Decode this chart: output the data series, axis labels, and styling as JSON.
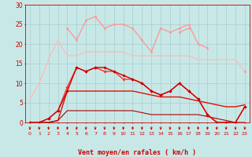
{
  "x": [
    0,
    1,
    2,
    3,
    4,
    5,
    6,
    7,
    8,
    9,
    10,
    11,
    12,
    13,
    14,
    15,
    16,
    17,
    18,
    19,
    20,
    21,
    22,
    23
  ],
  "background_color": "#c8e8e8",
  "grid_color": "#a8cccc",
  "lines": [
    {
      "y": [
        6,
        10,
        16,
        21,
        17,
        17,
        18,
        18,
        18,
        18,
        18,
        17,
        17,
        17,
        17,
        17,
        17,
        17,
        16,
        16,
        16,
        16,
        16,
        13
      ],
      "color": "#ffbbbb",
      "lw": 1.0,
      "marker": null
    },
    {
      "y": [
        null,
        null,
        null,
        null,
        24,
        21,
        26,
        27,
        24,
        25,
        25,
        24,
        21,
        18,
        24,
        23,
        24,
        25,
        20,
        19,
        null,
        null,
        null,
        null
      ],
      "color": "#ff9999",
      "lw": 1.0,
      "marker": "o"
    },
    {
      "y": [
        null,
        null,
        null,
        null,
        null,
        null,
        null,
        null,
        null,
        null,
        null,
        null,
        null,
        null,
        null,
        null,
        23,
        24,
        null,
        null,
        null,
        null,
        null,
        13
      ],
      "color": "#ff9999",
      "lw": 1.0,
      "marker": "o"
    },
    {
      "y": [
        0,
        0,
        1,
        3,
        9,
        14,
        13,
        14,
        13,
        13,
        11,
        11,
        10,
        8,
        7,
        8,
        10,
        8,
        6,
        2,
        0,
        0,
        0,
        4
      ],
      "color": "#ff3333",
      "lw": 1.0,
      "marker": "D"
    },
    {
      "y": [
        0,
        0,
        1,
        3,
        8,
        14,
        13,
        14,
        14,
        13,
        12,
        11,
        10,
        8,
        7,
        8,
        10,
        8,
        6,
        2,
        0,
        0,
        0,
        4
      ],
      "color": "#cc0000",
      "lw": 1.0,
      "marker": "D"
    },
    {
      "y": [
        0,
        0,
        0,
        0.5,
        8,
        8,
        8,
        8,
        8,
        8,
        8,
        8,
        7.5,
        7,
        6.5,
        6.5,
        6.5,
        6,
        5.5,
        5,
        4.5,
        4,
        4,
        4.5
      ],
      "color": "#dd1100",
      "lw": 1.0,
      "marker": null
    },
    {
      "y": [
        0,
        0,
        0,
        0.5,
        3,
        3,
        3,
        3,
        3,
        3,
        3,
        3,
        2.5,
        2,
        2,
        2,
        2,
        2,
        2,
        1.5,
        1,
        0.5,
        0,
        0
      ],
      "color": "#aa0000",
      "lw": 0.8,
      "marker": null
    }
  ],
  "xlim": [
    -0.5,
    23.5
  ],
  "ylim": [
    0,
    30
  ],
  "yticks": [
    0,
    5,
    10,
    15,
    20,
    25,
    30
  ],
  "xticks": [
    0,
    1,
    2,
    3,
    4,
    5,
    6,
    7,
    8,
    9,
    10,
    11,
    12,
    13,
    14,
    15,
    16,
    17,
    18,
    19,
    20,
    21,
    22,
    23
  ],
  "xlabel": "Vent moyen/en rafales ( km/h )",
  "xlabel_color": "#cc0000",
  "tick_color": "#cc0000",
  "axis_color": "#cc0000",
  "arrow_color": "#cc0000"
}
